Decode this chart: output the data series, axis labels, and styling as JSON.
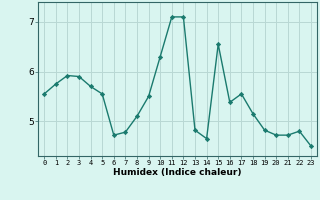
{
  "title": "",
  "xlabel": "Humidex (Indice chaleur)",
  "x_values": [
    0,
    1,
    2,
    3,
    4,
    5,
    6,
    7,
    8,
    9,
    10,
    11,
    12,
    13,
    14,
    15,
    16,
    17,
    18,
    19,
    20,
    21,
    22,
    23
  ],
  "y_values": [
    5.55,
    5.75,
    5.92,
    5.9,
    5.7,
    5.55,
    4.72,
    4.78,
    5.1,
    5.5,
    6.3,
    7.1,
    7.1,
    4.82,
    4.65,
    6.55,
    5.38,
    5.55,
    5.15,
    4.82,
    4.72,
    4.72,
    4.8,
    4.5
  ],
  "line_color": "#1a7a6e",
  "marker": "D",
  "marker_size": 2.2,
  "bg_color": "#d9f5f0",
  "grid_color": "#b8d8d4",
  "axis_color": "#336666",
  "ylim": [
    4.3,
    7.4
  ],
  "ytick_positions": [
    5,
    6,
    7
  ],
  "ytick_labels": [
    "5",
    "6",
    "7"
  ],
  "line_width": 1.0,
  "fig_width": 3.2,
  "fig_height": 2.0,
  "dpi": 100
}
